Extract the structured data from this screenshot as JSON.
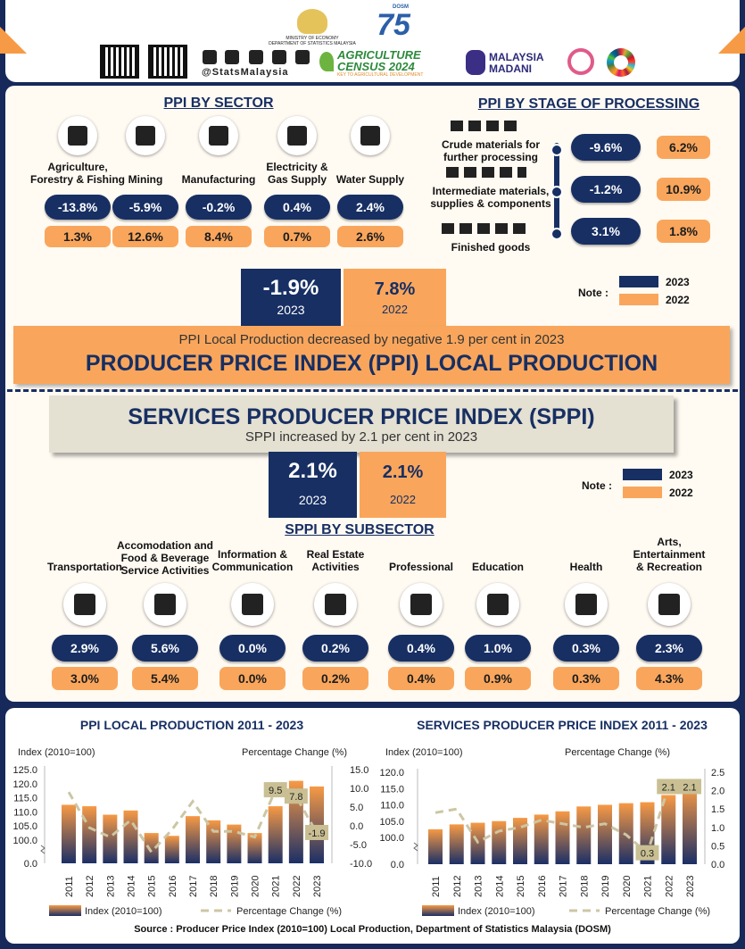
{
  "header": {
    "ministry": "MINISTRY OF ECONOMY",
    "department": "DEPARTMENT OF STATISTICS MALAYSIA",
    "social_handle": "@StatsMalaysia",
    "census_name": "AGRICULTURE CENSUS 2024",
    "census_tagline": "KEY TO AGRICULTURAL DEVELOPMENT",
    "madani": "MALAYSIA MADANI",
    "anniversary": "75",
    "anniversary_tag": "DOSM"
  },
  "ppi_by_sector": {
    "title": "PPI BY SECTOR",
    "sectors": [
      {
        "name": "Agriculture, Forestry & Fishing",
        "change_2023": "-13.8%",
        "change_2022": "1.3%"
      },
      {
        "name": "Mining",
        "change_2023": "-5.9%",
        "change_2022": "12.6%"
      },
      {
        "name": "Manufacturing",
        "change_2023": "-0.2%",
        "change_2022": "8.4%"
      },
      {
        "name": "Electricity & Gas Supply",
        "change_2023": "0.4%",
        "change_2022": "0.7%"
      },
      {
        "name": "Water Supply",
        "change_2023": "2.4%",
        "change_2022": "2.6%"
      }
    ]
  },
  "ppi_by_stage": {
    "title": "PPI BY STAGE OF PROCESSING",
    "stages": [
      {
        "name": "Crude materials for further processing",
        "change_2023": "-9.6%",
        "change_2022": "6.2%"
      },
      {
        "name": "Intermediate materials, supplies & components",
        "change_2023": "-1.2%",
        "change_2022": "10.9%"
      },
      {
        "name": "Finished goods",
        "change_2023": "3.1%",
        "change_2022": "1.8%"
      }
    ]
  },
  "ppi_summary": {
    "change_2023": "-1.9%",
    "year_2023": "2023",
    "change_2022": "7.8%",
    "year_2022": "2022",
    "note": "Note :",
    "legend": [
      "2023",
      "2022"
    ],
    "statement": "PPI Local Production decreased by negative 1.9 per cent in 2023",
    "title": "PRODUCER PRICE INDEX (PPI) LOCAL PRODUCTION"
  },
  "sppi_summary": {
    "title": "SERVICES PRODUCER PRICE INDEX (SPPI)",
    "statement": "SPPI increased by 2.1 per cent in 2023",
    "change_2023": "2.1%",
    "year_2023": "2023",
    "change_2022": "2.1%",
    "year_2022": "2022",
    "note": "Note :",
    "legend": [
      "2023",
      "2022"
    ]
  },
  "sppi_by_subsector": {
    "title": "SPPI BY SUBSECTOR",
    "subsectors": [
      {
        "name": "Transportation",
        "change_2023": "2.9%",
        "change_2022": "3.0%"
      },
      {
        "name": "Accomodation and Food & Beverage Service Activities",
        "change_2023": "5.6%",
        "change_2022": "5.4%"
      },
      {
        "name": "Information & Communication",
        "change_2023": "0.0%",
        "change_2022": "0.0%"
      },
      {
        "name": "Real Estate Activities",
        "change_2023": "0.2%",
        "change_2022": "0.2%"
      },
      {
        "name": "Professional",
        "change_2023": "0.4%",
        "change_2022": "0.4%"
      },
      {
        "name": "Education",
        "change_2023": "1.0%",
        "change_2022": "0.9%"
      },
      {
        "name": "Health",
        "change_2023": "0.3%",
        "change_2022": "0.3%"
      },
      {
        "name": "Arts, Entertainment & Recreation",
        "change_2023": "2.3%",
        "change_2022": "4.3%"
      }
    ]
  },
  "chart_data": [
    {
      "type": "combo",
      "title": "PPI LOCAL PRODUCTION 2011 - 2023",
      "y_label": "Index (2010=100)",
      "y2_label": "Percentage Change (%)",
      "categories": [
        "2011",
        "2012",
        "2013",
        "2014",
        "2015",
        "2016",
        "2017",
        "2018",
        "2019",
        "2020",
        "2021",
        "2022",
        "2023"
      ],
      "series": [
        {
          "name": "Index (2010=100)",
          "type": "bar",
          "color": "#f79a45",
          "color2": "#1b2f66",
          "values": [
            112.5,
            112,
            109,
            110.5,
            102.5,
            101.5,
            108.5,
            107,
            105.5,
            102.5,
            112,
            121,
            119
          ]
        },
        {
          "name": "Percentage Change (%)",
          "type": "line",
          "axis": "y2",
          "color": "#cdc6a4",
          "values": [
            9,
            -0.5,
            -3,
            1.5,
            -7,
            -1,
            6.5,
            -1.5,
            -1.5,
            -3,
            9.5,
            7.8,
            -1.9
          ],
          "value_labels": [
            null,
            null,
            null,
            null,
            null,
            null,
            null,
            null,
            null,
            null,
            "9.5",
            "7.8",
            "-1.9"
          ]
        }
      ],
      "ylim": [
        0,
        125
      ],
      "axis_break": true,
      "yticks": [
        {
          "value": 0,
          "label": "0.0"
        },
        {
          "value": 100,
          "label": "100.0"
        },
        {
          "value": 105,
          "label": "105.0"
        },
        {
          "value": 110,
          "label": "110.0"
        },
        {
          "value": 115,
          "label": "115.0"
        },
        {
          "value": 120,
          "label": "120.0"
        },
        {
          "value": 125,
          "label": "125.0"
        }
      ],
      "y2lim": [
        -10,
        15
      ],
      "y2ticks": [
        {
          "value": 15,
          "label": "15.0"
        },
        {
          "value": 10,
          "label": "10.0"
        },
        {
          "value": 5,
          "label": "5.0"
        },
        {
          "value": 0,
          "label": "0.0"
        },
        {
          "value": -5,
          "label": "-5.0"
        },
        {
          "value": -10,
          "label": "-10.0"
        }
      ]
    },
    {
      "type": "combo",
      "title": "SERVICES PRODUCER PRICE INDEX 2011 - 2023",
      "y_label": "Index (2010=100)",
      "y2_label": "Percentage Change (%)",
      "categories": [
        "2011",
        "2012",
        "2013",
        "2014",
        "2015",
        "2016",
        "2017",
        "2018",
        "2019",
        "2020",
        "2021",
        "2022",
        "2023"
      ],
      "series": [
        {
          "name": "Index (2010=100)",
          "type": "bar",
          "color": "#f79a45",
          "color2": "#1b2f66",
          "values": [
            102.5,
            104,
            104.5,
            105,
            106,
            107,
            108,
            109.5,
            110,
            110.5,
            110.8,
            113,
            115.5
          ]
        },
        {
          "name": "Percentage Change (%)",
          "type": "line",
          "axis": "y2",
          "color": "#cdc6a4",
          "values": [
            1.4,
            1.5,
            0.6,
            0.9,
            1.0,
            1.2,
            1.1,
            1.0,
            1.1,
            0.8,
            0.3,
            2.1,
            2.1
          ],
          "value_labels": [
            null,
            null,
            null,
            null,
            null,
            null,
            null,
            null,
            null,
            null,
            "0.3",
            "2.1",
            "2.1"
          ]
        }
      ],
      "ylim": [
        0,
        120
      ],
      "axis_break": true,
      "yticks": [
        {
          "value": 0,
          "label": "0.0"
        },
        {
          "value": 100,
          "label": "100.0"
        },
        {
          "value": 105,
          "label": "105.0"
        },
        {
          "value": 110,
          "label": "110.0"
        },
        {
          "value": 115,
          "label": "115.0"
        },
        {
          "value": 120,
          "label": "120.0"
        }
      ],
      "y2lim": [
        0,
        2.5
      ],
      "y2ticks": [
        2.5,
        {
          "value": 2,
          "label": "2.0"
        },
        1.5,
        {
          "value": 1,
          "label": "1.0"
        },
        0.5,
        {
          "value": 0,
          "label": "0.0"
        }
      ]
    }
  ],
  "source": "Source : Producer Price Index (2010=100) Local Production, Department of Statistics Malaysia (DOSM)"
}
